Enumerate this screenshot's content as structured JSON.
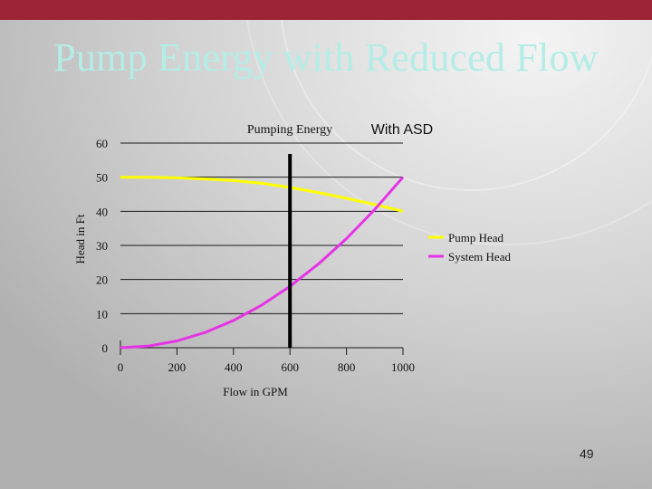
{
  "slide": {
    "title": "Pump Energy with Reduced Flow",
    "number": "49"
  },
  "colors": {
    "top_bar": "#9c2436",
    "title": "#b4ede6",
    "pump_head": "#ffff00",
    "system_head": "#e633e6",
    "marker_line": "#000000"
  },
  "chart_data": {
    "type": "line",
    "title": "Pumping Energy",
    "annotation": "With ASD",
    "xlabel": "Flow in GPM",
    "ylabel": "Head in Ft",
    "xlim": [
      0,
      1000
    ],
    "ylim": [
      0,
      60
    ],
    "x_ticks": [
      "0",
      "200",
      "400",
      "600",
      "800",
      "1000"
    ],
    "y_ticks": [
      "0",
      "10",
      "20",
      "30",
      "40",
      "50",
      "60"
    ],
    "grid": "horizontal",
    "legend_position": "right",
    "marker_flow": 600,
    "series": [
      {
        "name": "Pump Head",
        "color": "#ffff00",
        "x": [
          0,
          100,
          200,
          300,
          400,
          500,
          600,
          700,
          800,
          900,
          1000
        ],
        "y": [
          50,
          50,
          49.8,
          49.5,
          49,
          48.2,
          47,
          45.5,
          43.8,
          42,
          40
        ]
      },
      {
        "name": "System Head",
        "color": "#e633e6",
        "x": [
          0,
          100,
          200,
          300,
          400,
          500,
          600,
          700,
          800,
          900,
          1000
        ],
        "y": [
          0,
          0.5,
          2,
          4.5,
          8,
          12.5,
          18,
          24.5,
          32,
          40.5,
          50
        ]
      }
    ]
  }
}
